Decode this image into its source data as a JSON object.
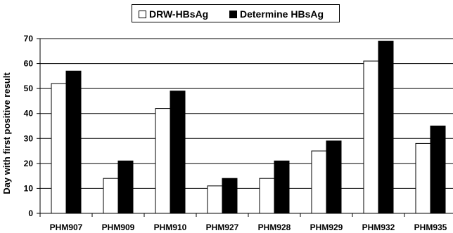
{
  "chart_data": {
    "type": "bar",
    "categories": [
      "PHM907",
      "PHM909",
      "PHM910",
      "PHM927",
      "PHM928",
      "PHM929",
      "PHM932",
      "PHM935"
    ],
    "series": [
      {
        "name": "DRW-HBsAg",
        "values": [
          52,
          14,
          42,
          11,
          14,
          25,
          61,
          28
        ],
        "color": "#ffffff"
      },
      {
        "name": "Determine HBsAg",
        "values": [
          57,
          21,
          49,
          14,
          21,
          29,
          69,
          35
        ],
        "color": "#000000"
      }
    ],
    "title": "",
    "xlabel": "",
    "ylabel": "Day with first positive result",
    "ylim": [
      0,
      70
    ],
    "yticks": [
      0,
      10,
      20,
      30,
      40,
      50,
      60,
      70
    ],
    "grid": true,
    "legend_position": "top-center"
  }
}
